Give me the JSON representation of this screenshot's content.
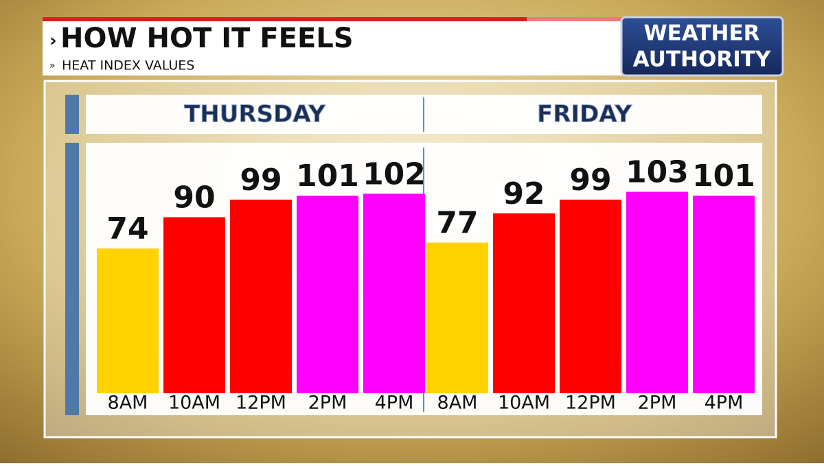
{
  "header": {
    "title": "HOW HOT IT FEELS",
    "subtitle": "HEAT INDEX VALUES"
  },
  "logo": {
    "line1": "WEATHER",
    "line2": "AUTHORITY"
  },
  "chart_data": [
    {
      "type": "bar",
      "title": "THURSDAY",
      "categories": [
        "8AM",
        "10AM",
        "12PM",
        "2PM",
        "4PM"
      ],
      "values": [
        74,
        90,
        99,
        101,
        102
      ],
      "colors": [
        "#ffd200",
        "#ff0000",
        "#ff0000",
        "#ff00ff",
        "#ff00ff"
      ]
    },
    {
      "type": "bar",
      "title": "FRIDAY",
      "categories": [
        "8AM",
        "10AM",
        "12PM",
        "2PM",
        "4PM"
      ],
      "values": [
        77,
        92,
        99,
        103,
        101
      ],
      "colors": [
        "#ffd200",
        "#ff0000",
        "#ff0000",
        "#ff00ff",
        "#ff00ff"
      ]
    }
  ]
}
